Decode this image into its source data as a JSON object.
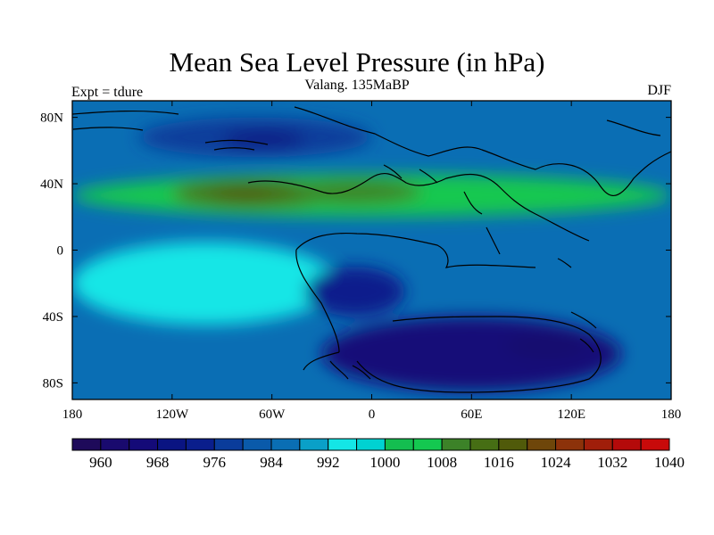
{
  "title": "Mean Sea Level Pressure (in hPa)",
  "subtitle": "Valang.  135MaBP",
  "left_label": "Expt = tdure",
  "right_label": "DJF",
  "chart_data": {
    "type": "heatmap",
    "title": "Mean Sea Level Pressure (in hPa)",
    "subtitle": "Valang.  135MaBP",
    "variable": "Mean Sea Level Pressure",
    "units": "hPa",
    "season": "DJF",
    "experiment": "tdure",
    "period": "Valang.  135MaBP",
    "xlim": [
      -180,
      180
    ],
    "ylim": [
      -90,
      90
    ],
    "x_ticks": [
      {
        "value": -180,
        "label": "180"
      },
      {
        "value": -120,
        "label": "120W"
      },
      {
        "value": -60,
        "label": "60W"
      },
      {
        "value": 0,
        "label": "0"
      },
      {
        "value": 60,
        "label": "60E"
      },
      {
        "value": 120,
        "label": "120E"
      },
      {
        "value": 180,
        "label": "180"
      }
    ],
    "y_ticks": [
      {
        "value": 80,
        "label": "80N"
      },
      {
        "value": 40,
        "label": "40N"
      },
      {
        "value": 0,
        "label": "0"
      },
      {
        "value": -40,
        "label": "40S"
      },
      {
        "value": -80,
        "label": "80S"
      }
    ],
    "colorbar": {
      "levels": [
        960,
        964,
        968,
        972,
        976,
        980,
        984,
        988,
        992,
        996,
        1000,
        1004,
        1008,
        1012,
        1016,
        1020,
        1024,
        1028,
        1032,
        1036,
        1040
      ],
      "colors": [
        "#1e0a5a",
        "#190a6e",
        "#140a78",
        "#0a1482",
        "#0a1e8c",
        "#0a3c9b",
        "#0a5aaa",
        "#0a6eb4",
        "#0aa0c8",
        "#14e6e6",
        "#00d2d2",
        "#14be50",
        "#14c850",
        "#3c8228",
        "#466e14",
        "#505a0a",
        "#6e460a",
        "#8c320a",
        "#a01e0a",
        "#b40a0a",
        "#c80a0a"
      ],
      "tick_labels": [
        "960",
        "968",
        "976",
        "984",
        "992",
        "1000",
        "1008",
        "1016",
        "1024",
        "1032",
        "1040"
      ]
    },
    "fields": [
      {
        "name": "subtropical high band",
        "value": 1008,
        "lon": [
          -180,
          180
        ],
        "lat": [
          20,
          46
        ]
      },
      {
        "name": "north Pacific high core",
        "value": 1016,
        "lon": [
          -120,
          -20
        ],
        "lat": [
          26,
          42
        ]
      },
      {
        "name": "north Pacific high max",
        "value": 1020,
        "lon": [
          -95,
          -60
        ],
        "lat": [
          29,
          37
        ]
      },
      {
        "name": "north Atlantic high",
        "value": 1012,
        "lon": [
          -50,
          30
        ],
        "lat": [
          28,
          42
        ]
      },
      {
        "name": "north polar low",
        "value": 980,
        "lon": [
          -140,
          0
        ],
        "lat": [
          56,
          80
        ]
      },
      {
        "name": "north polar low core",
        "value": 972,
        "lon": [
          -90,
          -40
        ],
        "lat": [
          62,
          72
        ]
      },
      {
        "name": "south Pacific high",
        "value": 996,
        "lon": [
          -180,
          -20
        ],
        "lat": [
          -45,
          5
        ]
      },
      {
        "name": "southern continent low",
        "value": 976,
        "lon": [
          -40,
          20
        ],
        "lat": [
          -40,
          -10
        ]
      },
      {
        "name": "southern ocean low",
        "value": 968,
        "lon": [
          -30,
          150
        ],
        "lat": [
          -85,
          -40
        ]
      },
      {
        "name": "southern ocean low core",
        "value": 964,
        "lon": [
          80,
          130
        ],
        "lat": [
          -65,
          -50
        ]
      }
    ]
  }
}
